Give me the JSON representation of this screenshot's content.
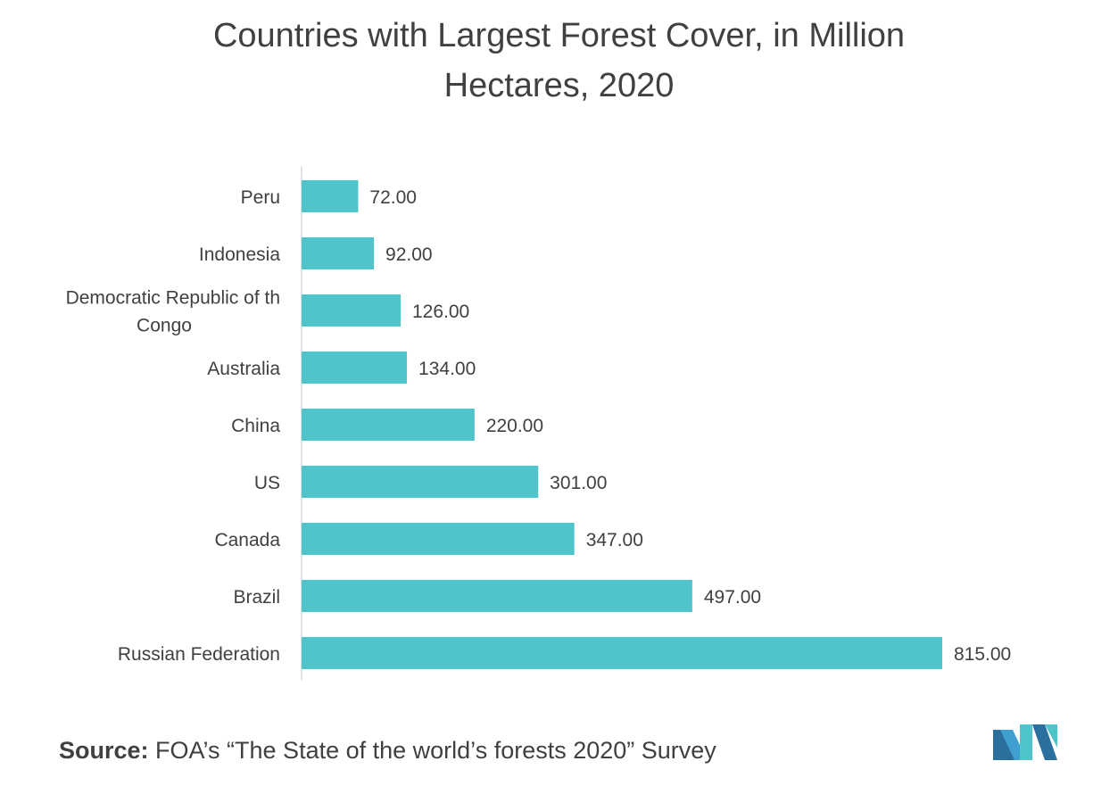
{
  "title_line1": "Countries with Largest Forest Cover, in Million",
  "title_line2": "Hectares, 2020",
  "source_label": "Source:",
  "source_text": " FOA’s “The State of the world’s forests 2020” Survey",
  "colors": {
    "bar": "#4fc4cb",
    "text": "#404040",
    "axis": "#d9d9d9"
  },
  "chart_data": {
    "type": "bar",
    "orientation": "horizontal",
    "categories": [
      "Peru",
      "Indonesia",
      "Democratic Republic of th Congo",
      "Australia",
      "China",
      "US",
      "Canada",
      "Brazil",
      "Russian Federation"
    ],
    "category_lines": [
      [
        "Peru"
      ],
      [
        "Indonesia"
      ],
      [
        "Democratic Republic of th",
        "Congo"
      ],
      [
        "Australia"
      ],
      [
        "China"
      ],
      [
        "US"
      ],
      [
        "Canada"
      ],
      [
        "Brazil"
      ],
      [
        "Russian Federation"
      ]
    ],
    "values": [
      72,
      92,
      126,
      134,
      220,
      301,
      347,
      497,
      815
    ],
    "data_labels": [
      "72.00",
      "92.00",
      "126.00",
      "134.00",
      "220.00",
      "301.00",
      "347.00",
      "497.00",
      "815.00"
    ],
    "title": "Countries with Largest Forest Cover, in Million Hectares, 2020",
    "xlabel": "",
    "ylabel": "",
    "xlim": [
      0,
      815
    ],
    "grid": false,
    "legend": "none"
  }
}
